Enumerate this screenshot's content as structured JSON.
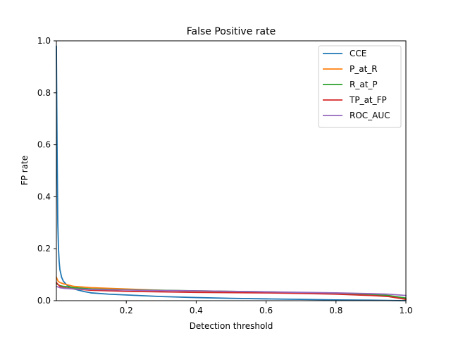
{
  "chart_data": {
    "type": "line",
    "title": "False Positive rate",
    "xlabel": "Detection threshold",
    "ylabel": "FP rate",
    "xlim": [
      0.0,
      1.0
    ],
    "ylim": [
      0.0,
      1.0
    ],
    "xticks": [
      0.2,
      0.4,
      0.6,
      0.8,
      1.0
    ],
    "xtick_labels": [
      "0.2",
      "0.4",
      "0.6",
      "0.8",
      "1.0"
    ],
    "yticks": [
      0.0,
      0.2,
      0.4,
      0.6,
      0.8,
      1.0
    ],
    "ytick_labels": [
      "0.0",
      "0.2",
      "0.4",
      "0.6",
      "0.8",
      "1.0"
    ],
    "grid": false,
    "legend_position": "top-right",
    "series": [
      {
        "name": "CCE",
        "color": "#1f77b4",
        "x": [
          0.0,
          0.002,
          0.004,
          0.006,
          0.008,
          0.01,
          0.015,
          0.02,
          0.03,
          0.05,
          0.08,
          0.1,
          0.15,
          0.2,
          0.3,
          0.4,
          0.5,
          0.6,
          0.7,
          0.8,
          0.9,
          0.95,
          1.0
        ],
        "y": [
          0.98,
          0.6,
          0.3,
          0.2,
          0.15,
          0.12,
          0.09,
          0.075,
          0.06,
          0.045,
          0.035,
          0.03,
          0.025,
          0.022,
          0.016,
          0.012,
          0.009,
          0.007,
          0.005,
          0.003,
          0.002,
          0.001,
          0.0
        ]
      },
      {
        "name": "P_at_R",
        "color": "#ff7f0e",
        "x": [
          0.0,
          0.005,
          0.01,
          0.02,
          0.05,
          0.1,
          0.2,
          0.3,
          0.4,
          0.5,
          0.6,
          0.7,
          0.8,
          0.9,
          0.95,
          1.0
        ],
        "y": [
          0.09,
          0.075,
          0.07,
          0.065,
          0.055,
          0.05,
          0.045,
          0.04,
          0.037,
          0.035,
          0.033,
          0.03,
          0.027,
          0.022,
          0.018,
          0.005
        ]
      },
      {
        "name": "R_at_P",
        "color": "#2ca02c",
        "x": [
          0.0,
          0.01,
          0.02,
          0.05,
          0.1,
          0.2,
          0.3,
          0.4,
          0.5,
          0.6,
          0.7,
          0.8,
          0.9,
          0.95,
          1.0
        ],
        "y": [
          0.065,
          0.058,
          0.055,
          0.05,
          0.045,
          0.042,
          0.04,
          0.038,
          0.036,
          0.034,
          0.031,
          0.028,
          0.024,
          0.02,
          0.01
        ]
      },
      {
        "name": "TP_at_FP",
        "color": "#d62728",
        "x": [
          0.0,
          0.01,
          0.02,
          0.05,
          0.1,
          0.2,
          0.3,
          0.4,
          0.5,
          0.6,
          0.7,
          0.8,
          0.9,
          0.95,
          1.0
        ],
        "y": [
          0.07,
          0.055,
          0.05,
          0.045,
          0.04,
          0.036,
          0.034,
          0.032,
          0.031,
          0.03,
          0.028,
          0.025,
          0.02,
          0.016,
          0.005
        ]
      },
      {
        "name": "ROC_AUC",
        "color": "#9467bd",
        "x": [
          0.0,
          0.01,
          0.02,
          0.05,
          0.1,
          0.2,
          0.3,
          0.4,
          0.5,
          0.6,
          0.7,
          0.8,
          0.9,
          0.95,
          1.0
        ],
        "y": [
          0.055,
          0.05,
          0.048,
          0.045,
          0.043,
          0.041,
          0.039,
          0.038,
          0.036,
          0.034,
          0.032,
          0.03,
          0.027,
          0.025,
          0.02
        ]
      }
    ]
  }
}
